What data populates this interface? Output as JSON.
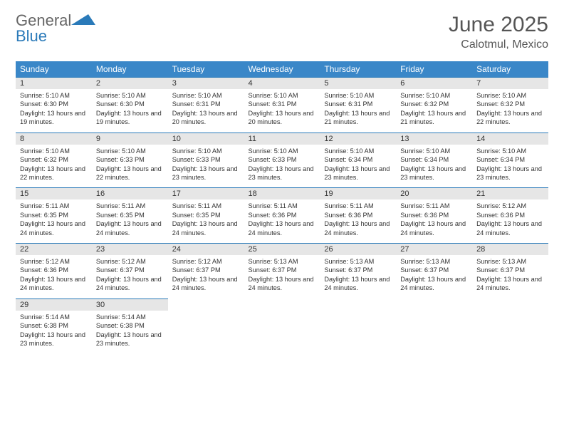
{
  "logo": {
    "word1": "General",
    "word2": "Blue"
  },
  "title": "June 2025",
  "location": "Calotmul, Mexico",
  "colors": {
    "header_bg": "#3a87c8",
    "header_text": "#ffffff",
    "day_bg": "#e6e6e6",
    "rule": "#2a7ab9"
  },
  "weekdays": [
    "Sunday",
    "Monday",
    "Tuesday",
    "Wednesday",
    "Thursday",
    "Friday",
    "Saturday"
  ],
  "weeks": [
    [
      {
        "n": "1",
        "sr": "5:10 AM",
        "ss": "6:30 PM",
        "dh": "13",
        "dm": "19"
      },
      {
        "n": "2",
        "sr": "5:10 AM",
        "ss": "6:30 PM",
        "dh": "13",
        "dm": "19"
      },
      {
        "n": "3",
        "sr": "5:10 AM",
        "ss": "6:31 PM",
        "dh": "13",
        "dm": "20"
      },
      {
        "n": "4",
        "sr": "5:10 AM",
        "ss": "6:31 PM",
        "dh": "13",
        "dm": "20"
      },
      {
        "n": "5",
        "sr": "5:10 AM",
        "ss": "6:31 PM",
        "dh": "13",
        "dm": "21"
      },
      {
        "n": "6",
        "sr": "5:10 AM",
        "ss": "6:32 PM",
        "dh": "13",
        "dm": "21"
      },
      {
        "n": "7",
        "sr": "5:10 AM",
        "ss": "6:32 PM",
        "dh": "13",
        "dm": "22"
      }
    ],
    [
      {
        "n": "8",
        "sr": "5:10 AM",
        "ss": "6:32 PM",
        "dh": "13",
        "dm": "22"
      },
      {
        "n": "9",
        "sr": "5:10 AM",
        "ss": "6:33 PM",
        "dh": "13",
        "dm": "22"
      },
      {
        "n": "10",
        "sr": "5:10 AM",
        "ss": "6:33 PM",
        "dh": "13",
        "dm": "23"
      },
      {
        "n": "11",
        "sr": "5:10 AM",
        "ss": "6:33 PM",
        "dh": "13",
        "dm": "23"
      },
      {
        "n": "12",
        "sr": "5:10 AM",
        "ss": "6:34 PM",
        "dh": "13",
        "dm": "23"
      },
      {
        "n": "13",
        "sr": "5:10 AM",
        "ss": "6:34 PM",
        "dh": "13",
        "dm": "23"
      },
      {
        "n": "14",
        "sr": "5:10 AM",
        "ss": "6:34 PM",
        "dh": "13",
        "dm": "23"
      }
    ],
    [
      {
        "n": "15",
        "sr": "5:11 AM",
        "ss": "6:35 PM",
        "dh": "13",
        "dm": "24"
      },
      {
        "n": "16",
        "sr": "5:11 AM",
        "ss": "6:35 PM",
        "dh": "13",
        "dm": "24"
      },
      {
        "n": "17",
        "sr": "5:11 AM",
        "ss": "6:35 PM",
        "dh": "13",
        "dm": "24"
      },
      {
        "n": "18",
        "sr": "5:11 AM",
        "ss": "6:36 PM",
        "dh": "13",
        "dm": "24"
      },
      {
        "n": "19",
        "sr": "5:11 AM",
        "ss": "6:36 PM",
        "dh": "13",
        "dm": "24"
      },
      {
        "n": "20",
        "sr": "5:11 AM",
        "ss": "6:36 PM",
        "dh": "13",
        "dm": "24"
      },
      {
        "n": "21",
        "sr": "5:12 AM",
        "ss": "6:36 PM",
        "dh": "13",
        "dm": "24"
      }
    ],
    [
      {
        "n": "22",
        "sr": "5:12 AM",
        "ss": "6:36 PM",
        "dh": "13",
        "dm": "24"
      },
      {
        "n": "23",
        "sr": "5:12 AM",
        "ss": "6:37 PM",
        "dh": "13",
        "dm": "24"
      },
      {
        "n": "24",
        "sr": "5:12 AM",
        "ss": "6:37 PM",
        "dh": "13",
        "dm": "24"
      },
      {
        "n": "25",
        "sr": "5:13 AM",
        "ss": "6:37 PM",
        "dh": "13",
        "dm": "24"
      },
      {
        "n": "26",
        "sr": "5:13 AM",
        "ss": "6:37 PM",
        "dh": "13",
        "dm": "24"
      },
      {
        "n": "27",
        "sr": "5:13 AM",
        "ss": "6:37 PM",
        "dh": "13",
        "dm": "24"
      },
      {
        "n": "28",
        "sr": "5:13 AM",
        "ss": "6:37 PM",
        "dh": "13",
        "dm": "24"
      }
    ],
    [
      {
        "n": "29",
        "sr": "5:14 AM",
        "ss": "6:38 PM",
        "dh": "13",
        "dm": "23"
      },
      {
        "n": "30",
        "sr": "5:14 AM",
        "ss": "6:38 PM",
        "dh": "13",
        "dm": "23"
      },
      null,
      null,
      null,
      null,
      null
    ]
  ],
  "labels": {
    "sunrise": "Sunrise:",
    "sunset": "Sunset:",
    "daylight": "Daylight:",
    "hours": "hours",
    "and": "and",
    "minutes": "minutes."
  }
}
